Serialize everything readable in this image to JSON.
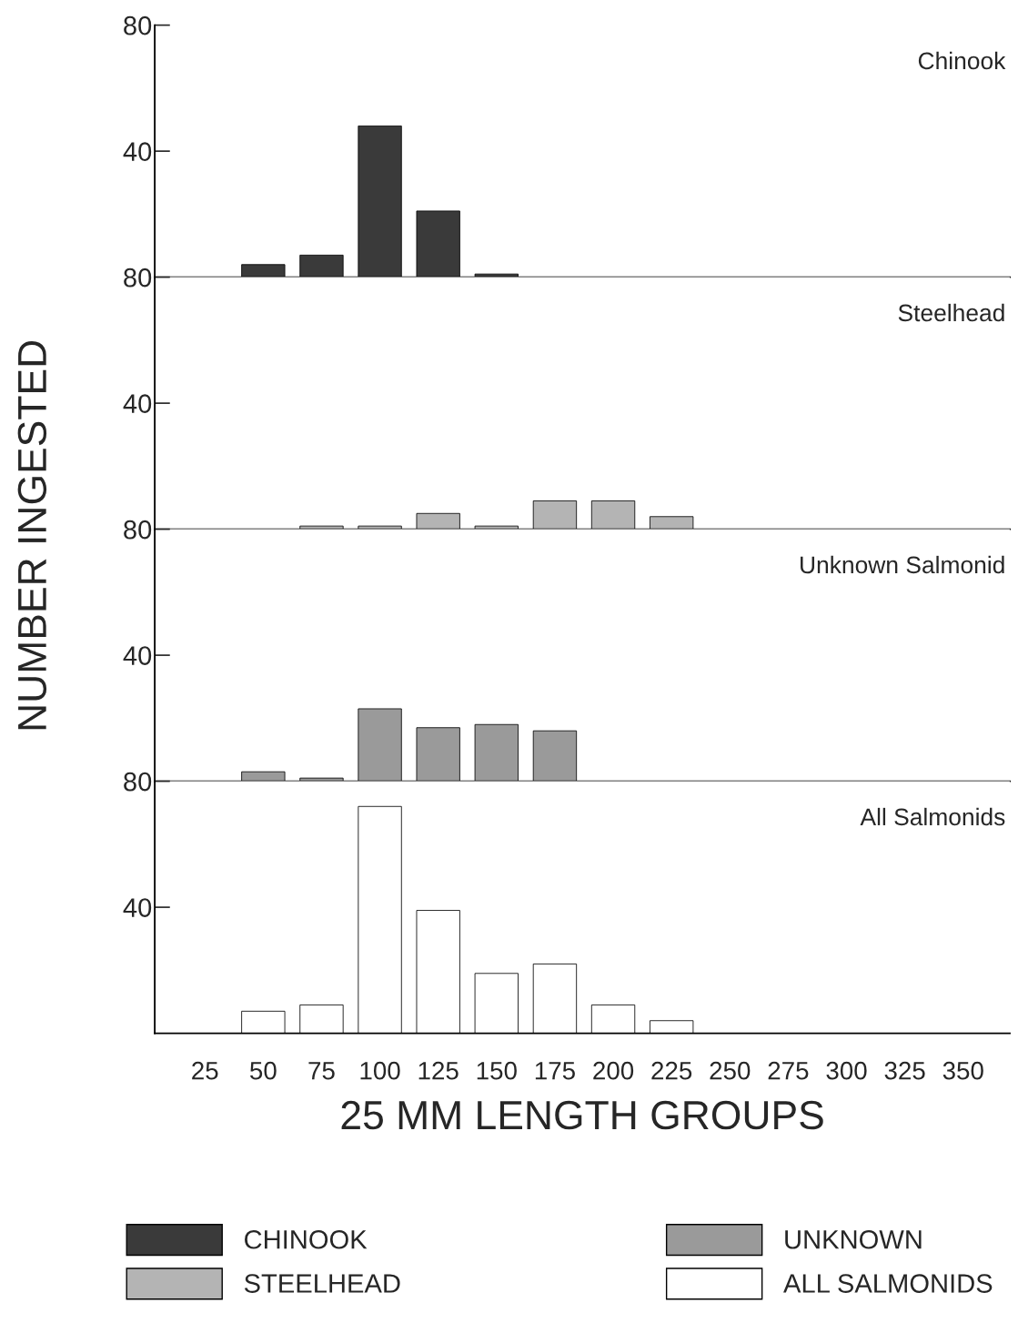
{
  "chart_data": [
    {
      "type": "bar",
      "title": "Chinook",
      "ylabel": "NUMBER INGESTED",
      "categories": [
        "25",
        "50",
        "75",
        "100",
        "125",
        "150",
        "175",
        "200",
        "225",
        "250",
        "275",
        "300",
        "325",
        "350"
      ],
      "series": [
        {
          "name": "CHINOOK",
          "color": "#3a3a3a",
          "values": [
            0,
            4,
            7,
            48,
            21,
            1,
            0,
            0,
            0,
            0,
            0,
            0,
            0,
            0
          ]
        }
      ],
      "ylim": [
        0,
        80
      ],
      "yticks": [
        40,
        80
      ],
      "tick_labels": "y",
      "legend": "bottom"
    },
    {
      "type": "bar",
      "title": "Steelhead",
      "categories": [
        "25",
        "50",
        "75",
        "100",
        "125",
        "150",
        "175",
        "200",
        "225",
        "250",
        "275",
        "300",
        "325",
        "350"
      ],
      "series": [
        {
          "name": "STEELHEAD",
          "color": "#b4b4b4",
          "values": [
            0,
            0,
            1,
            1,
            5,
            1,
            9,
            9,
            4,
            0,
            0,
            0,
            0,
            0
          ]
        }
      ],
      "ylim": [
        0,
        80
      ],
      "yticks": [
        40,
        80
      ],
      "tick_labels": "y",
      "legend": "bottom"
    },
    {
      "type": "bar",
      "title": "Unknown Salmonid",
      "categories": [
        "25",
        "50",
        "75",
        "100",
        "125",
        "150",
        "175",
        "200",
        "225",
        "250",
        "275",
        "300",
        "325",
        "350"
      ],
      "series": [
        {
          "name": "UNKNOWN",
          "color": "#9a9a9a",
          "values": [
            0,
            3,
            1,
            23,
            17,
            18,
            16,
            0,
            0,
            0,
            0,
            0,
            0,
            0
          ]
        }
      ],
      "ylim": [
        0,
        80
      ],
      "yticks": [
        40,
        80
      ],
      "tick_labels": "y",
      "legend": "bottom"
    },
    {
      "type": "bar",
      "title": "All Salmonids",
      "xlabel": "25 MM LENGTH GROUPS",
      "categories": [
        "25",
        "50",
        "75",
        "100",
        "125",
        "150",
        "175",
        "200",
        "225",
        "250",
        "275",
        "300",
        "325",
        "350"
      ],
      "series": [
        {
          "name": "ALL SALMONIDS",
          "color": "#ffffff",
          "values": [
            0,
            7,
            9,
            72,
            39,
            19,
            22,
            9,
            4,
            0,
            0,
            0,
            0,
            0
          ]
        }
      ],
      "ylim": [
        0,
        80
      ],
      "yticks": [
        40,
        80
      ],
      "legend": "bottom"
    }
  ]
}
